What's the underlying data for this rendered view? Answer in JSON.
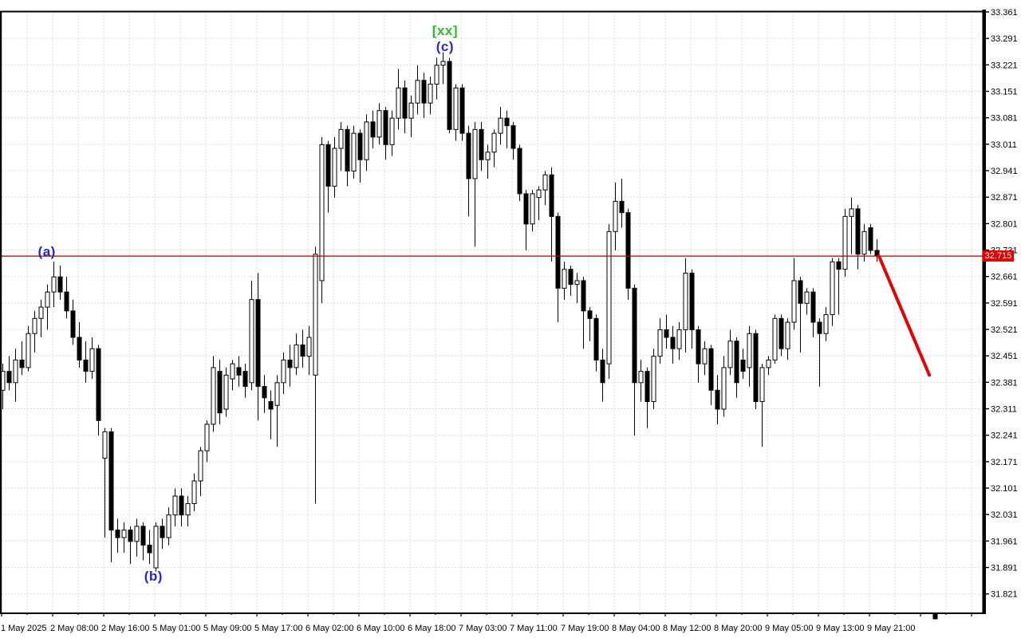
{
  "chart_data": {
    "type": "candlestick",
    "title": "",
    "x_labels": [
      "1 May 2025",
      "2 May 08:00",
      "2 May 16:00",
      "5 May 01:00",
      "5 May 09:00",
      "5 May 17:00",
      "6 May 02:00",
      "6 May 10:00",
      "6 May 18:00",
      "7 May 03:00",
      "7 May 11:00",
      "7 May 19:00",
      "8 May 04:00",
      "8 May 12:00",
      "8 May 20:00",
      "9 May 05:00",
      "9 May 13:00",
      "9 May 21:00"
    ],
    "bars_per_label": 8,
    "y_axis": {
      "max": 33.361,
      "min": 31.821,
      "step": 0.07
    },
    "y_ticks": [
      "33.361",
      "33.291",
      "33.221",
      "33.151",
      "33.081",
      "33.011",
      "32.941",
      "32.871",
      "32.801",
      "32.731",
      "32.661",
      "32.591",
      "32.521",
      "32.451",
      "32.381",
      "32.311",
      "32.241",
      "32.171",
      "32.101",
      "32.031",
      "31.961",
      "31.891",
      "31.821"
    ],
    "candles": [
      [
        32.36,
        32.43,
        32.31,
        32.41
      ],
      [
        32.41,
        32.45,
        32.36,
        32.38
      ],
      [
        32.38,
        32.47,
        32.33,
        32.44
      ],
      [
        32.44,
        32.49,
        32.4,
        32.42
      ],
      [
        32.42,
        32.53,
        32.41,
        32.51
      ],
      [
        32.51,
        32.57,
        32.46,
        32.55
      ],
      [
        32.55,
        32.6,
        32.5,
        32.58
      ],
      [
        32.58,
        32.64,
        32.52,
        32.62
      ],
      [
        32.62,
        32.7,
        32.58,
        32.66
      ],
      [
        32.66,
        32.69,
        32.6,
        32.62
      ],
      [
        32.62,
        32.66,
        32.55,
        32.57
      ],
      [
        32.57,
        32.6,
        32.48,
        32.5
      ],
      [
        32.5,
        32.54,
        32.42,
        32.44
      ],
      [
        32.44,
        32.49,
        32.38,
        32.41
      ],
      [
        32.41,
        32.5,
        32.39,
        32.47
      ],
      [
        32.47,
        32.48,
        32.24,
        32.28
      ],
      [
        32.18,
        32.26,
        31.97,
        32.25
      ],
      [
        32.25,
        32.26,
        31.905,
        31.99
      ],
      [
        31.99,
        32.02,
        31.93,
        31.97
      ],
      [
        31.97,
        32.01,
        31.93,
        31.99
      ],
      [
        31.99,
        32.0,
        31.9,
        31.96
      ],
      [
        31.96,
        32.02,
        31.92,
        32.0
      ],
      [
        32.0,
        32.01,
        31.91,
        31.95
      ],
      [
        31.95,
        31.99,
        31.9,
        31.93
      ],
      [
        31.89,
        32.01,
        31.88,
        32.0
      ],
      [
        32.0,
        32.02,
        31.94,
        31.97
      ],
      [
        31.97,
        32.05,
        31.95,
        32.03
      ],
      [
        32.03,
        32.1,
        32.0,
        32.08
      ],
      [
        32.08,
        32.1,
        32.0,
        32.03
      ],
      [
        32.03,
        32.08,
        32.0,
        32.06
      ],
      [
        32.06,
        32.14,
        32.04,
        32.12
      ],
      [
        32.12,
        32.21,
        32.08,
        32.2
      ],
      [
        32.2,
        32.28,
        32.17,
        32.27
      ],
      [
        32.27,
        32.45,
        32.25,
        32.42
      ],
      [
        32.41,
        32.44,
        32.27,
        32.3
      ],
      [
        32.31,
        32.42,
        32.29,
        32.4
      ],
      [
        32.39,
        32.44,
        32.36,
        32.43
      ],
      [
        32.42,
        32.45,
        32.37,
        32.4
      ],
      [
        32.41,
        32.43,
        32.34,
        32.37
      ],
      [
        32.38,
        32.65,
        32.36,
        32.6
      ],
      [
        32.6,
        32.67,
        32.28,
        32.37
      ],
      [
        32.37,
        32.4,
        32.3,
        32.34
      ],
      [
        32.33,
        32.36,
        32.23,
        32.31
      ],
      [
        32.32,
        32.4,
        32.21,
        32.38
      ],
      [
        32.38,
        32.46,
        32.35,
        32.44
      ],
      [
        32.44,
        32.48,
        32.37,
        32.42
      ],
      [
        32.42,
        32.51,
        32.4,
        32.48
      ],
      [
        32.48,
        32.52,
        32.42,
        32.45
      ],
      [
        32.45,
        32.53,
        32.4,
        32.5
      ],
      [
        32.4,
        32.74,
        32.06,
        32.72
      ],
      [
        32.65,
        33.03,
        32.59,
        33.01
      ],
      [
        33.01,
        33.02,
        32.83,
        32.9
      ],
      [
        32.9,
        33.03,
        32.87,
        33.0
      ],
      [
        33.0,
        33.07,
        32.94,
        33.05
      ],
      [
        33.05,
        33.06,
        32.9,
        32.94
      ],
      [
        32.94,
        33.06,
        32.92,
        33.04
      ],
      [
        33.04,
        33.05,
        32.91,
        32.97
      ],
      [
        32.97,
        33.09,
        32.94,
        33.07
      ],
      [
        33.07,
        33.1,
        33.0,
        33.03
      ],
      [
        33.03,
        33.12,
        33.01,
        33.1
      ],
      [
        33.1,
        33.11,
        32.97,
        33.01
      ],
      [
        33.01,
        33.1,
        32.98,
        33.08
      ],
      [
        33.08,
        33.21,
        33.05,
        33.16
      ],
      [
        33.16,
        33.18,
        33.04,
        33.08
      ],
      [
        33.08,
        33.14,
        33.03,
        33.12
      ],
      [
        33.12,
        33.22,
        33.09,
        33.18
      ],
      [
        33.18,
        33.2,
        33.08,
        33.12
      ],
      [
        33.12,
        33.19,
        33.09,
        33.17
      ],
      [
        33.17,
        33.24,
        33.13,
        33.22
      ],
      [
        33.22,
        33.255,
        33.17,
        33.23
      ],
      [
        33.23,
        33.24,
        33.04,
        33.05
      ],
      [
        33.05,
        33.17,
        33.02,
        33.16
      ],
      [
        33.16,
        33.17,
        33.02,
        33.04
      ],
      [
        33.04,
        33.06,
        32.82,
        32.92
      ],
      [
        32.92,
        33.07,
        32.74,
        33.05
      ],
      [
        33.05,
        33.07,
        32.94,
        32.97
      ],
      [
        32.97,
        33.01,
        32.92,
        32.99
      ],
      [
        32.99,
        33.05,
        32.95,
        33.04
      ],
      [
        33.04,
        33.11,
        33.01,
        33.08
      ],
      [
        33.08,
        33.1,
        33.0,
        33.06
      ],
      [
        33.06,
        33.07,
        32.97,
        33.0
      ],
      [
        33.0,
        33.01,
        32.86,
        32.88
      ],
      [
        32.88,
        32.89,
        32.73,
        32.8
      ],
      [
        32.8,
        32.89,
        32.78,
        32.88
      ],
      [
        32.87,
        32.9,
        32.81,
        32.89
      ],
      [
        32.89,
        32.94,
        32.85,
        32.93
      ],
      [
        32.93,
        32.95,
        32.7,
        32.82
      ],
      [
        32.82,
        32.83,
        32.54,
        32.63
      ],
      [
        32.63,
        32.7,
        32.6,
        32.68
      ],
      [
        32.68,
        32.69,
        32.61,
        32.64
      ],
      [
        32.64,
        32.67,
        32.59,
        32.65
      ],
      [
        32.65,
        32.66,
        32.47,
        32.57
      ],
      [
        32.57,
        32.58,
        32.49,
        32.55
      ],
      [
        32.55,
        32.56,
        32.41,
        32.44
      ],
      [
        32.44,
        32.47,
        32.33,
        32.38
      ],
      [
        32.43,
        32.8,
        32.39,
        32.78
      ],
      [
        32.78,
        32.91,
        32.73,
        32.86
      ],
      [
        32.86,
        32.92,
        32.79,
        32.83
      ],
      [
        32.83,
        32.84,
        32.6,
        32.63
      ],
      [
        32.63,
        32.64,
        32.24,
        32.38
      ],
      [
        32.38,
        32.44,
        32.33,
        32.41
      ],
      [
        32.41,
        32.42,
        32.26,
        32.33
      ],
      [
        32.33,
        32.47,
        32.31,
        32.45
      ],
      [
        32.45,
        32.55,
        32.43,
        32.52
      ],
      [
        32.52,
        32.56,
        32.47,
        32.5
      ],
      [
        32.5,
        32.53,
        32.43,
        32.47
      ],
      [
        32.47,
        32.54,
        32.44,
        32.52
      ],
      [
        32.52,
        32.71,
        32.46,
        32.67
      ],
      [
        32.67,
        32.68,
        32.47,
        32.52
      ],
      [
        32.52,
        32.53,
        32.38,
        32.43
      ],
      [
        32.43,
        32.49,
        32.4,
        32.47
      ],
      [
        32.47,
        32.48,
        32.32,
        32.36
      ],
      [
        32.36,
        32.4,
        32.27,
        32.31
      ],
      [
        32.31,
        32.45,
        32.29,
        32.42
      ],
      [
        32.42,
        32.52,
        32.4,
        32.49
      ],
      [
        32.49,
        32.5,
        32.34,
        32.38
      ],
      [
        32.44,
        32.47,
        32.39,
        32.41
      ],
      [
        32.42,
        32.53,
        32.37,
        32.51
      ],
      [
        32.51,
        32.52,
        32.31,
        32.33
      ],
      [
        32.33,
        32.43,
        32.21,
        32.42
      ],
      [
        32.42,
        32.45,
        32.4,
        32.44
      ],
      [
        32.44,
        32.56,
        32.43,
        32.55
      ],
      [
        32.55,
        32.56,
        32.45,
        32.47
      ],
      [
        32.47,
        32.55,
        32.44,
        32.54
      ],
      [
        32.54,
        32.71,
        32.52,
        32.65
      ],
      [
        32.65,
        32.66,
        32.46,
        32.59
      ],
      [
        32.59,
        32.63,
        32.56,
        32.62
      ],
      [
        32.62,
        32.63,
        32.5,
        32.54
      ],
      [
        32.54,
        32.55,
        32.37,
        32.51
      ],
      [
        32.51,
        32.58,
        32.49,
        32.56
      ],
      [
        32.56,
        32.71,
        32.53,
        32.7
      ],
      [
        32.7,
        32.71,
        32.56,
        32.68
      ],
      [
        32.68,
        32.84,
        32.66,
        32.82
      ],
      [
        32.82,
        32.87,
        32.72,
        32.84
      ],
      [
        32.84,
        32.85,
        32.68,
        32.72
      ],
      [
        32.72,
        32.8,
        32.7,
        32.78
      ],
      [
        32.79,
        32.8,
        32.72,
        32.73
      ],
      [
        32.73,
        32.76,
        32.7,
        32.715
      ]
    ],
    "price_line": {
      "price": 32.715,
      "label": "32.715"
    },
    "trend_line": {
      "from_bar": 137.3,
      "from_price": 32.715,
      "to_bar": 145.2,
      "to_price": 32.4
    },
    "annotations": [
      {
        "text": "(a)",
        "bar": 6.9,
        "price": 32.725,
        "color": "#2626cc"
      },
      {
        "text": "(b)",
        "bar": 23.6,
        "price": 31.866,
        "color": "#2626cc"
      },
      {
        "text": "(c)",
        "bar": 69.3,
        "price": 33.268,
        "color": "#2626cc"
      },
      {
        "text": "[xx]",
        "bar": 69.3,
        "price": 33.311,
        "color": "#2bbb2b"
      }
    ],
    "colors": {
      "background": "#ffffff",
      "bull_fill": "#ffffff",
      "bear_fill": "#000000",
      "candle_outline": "#000000",
      "grid": "#dcdcdc",
      "axis": "#000000",
      "label_text": "#000000",
      "price_line": "#aa0000",
      "badge_bg": "#dd0000",
      "badge_text": "#ffffff",
      "trend_line": "#e60000"
    },
    "legend": null,
    "grid": "dashed"
  }
}
